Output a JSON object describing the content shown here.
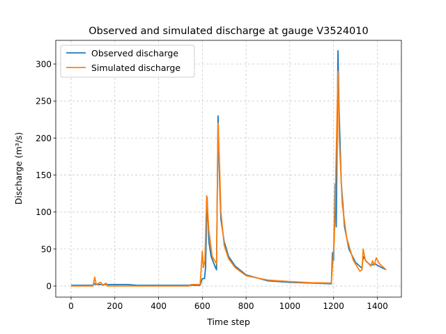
{
  "chart_data": {
    "type": "line",
    "title": "Observed and simulated discharge at gauge V3524010",
    "xlabel": "Time step",
    "ylabel": "Discharge (m³/s)",
    "xlim": [
      -70,
      1510
    ],
    "ylim": [
      -15,
      332
    ],
    "xticks": [
      0,
      200,
      400,
      600,
      800,
      1000,
      1200,
      1400
    ],
    "yticks": [
      0,
      50,
      100,
      150,
      200,
      250,
      300
    ],
    "grid": true,
    "legend_position": "top-left",
    "series": [
      {
        "name": "Observed discharge",
        "color": "#1f77b4",
        "x": [
          0,
          100,
          105,
          110,
          130,
          140,
          200,
          220,
          240,
          260,
          300,
          500,
          590,
          600,
          610,
          615,
          622,
          630,
          640,
          660,
          665,
          672,
          678,
          685,
          700,
          720,
          750,
          800,
          900,
          1000,
          1100,
          1190,
          1195,
          1200,
          1207,
          1212,
          1220,
          1225,
          1235,
          1250,
          1270,
          1300,
          1330,
          1335,
          1350,
          1370,
          1390,
          1400,
          1420,
          1440
        ],
        "y": [
          1,
          1,
          4,
          2,
          2,
          2,
          2,
          2,
          2,
          2,
          1,
          1,
          1,
          10,
          10,
          25,
          120,
          60,
          40,
          25,
          22,
          230,
          150,
          90,
          60,
          40,
          27,
          15,
          7,
          5,
          4,
          3,
          45,
          35,
          138,
          80,
          318,
          240,
          140,
          80,
          50,
          32,
          24,
          40,
          33,
          28,
          30,
          28,
          25,
          22
        ]
      },
      {
        "name": "Simulated discharge",
        "color": "#ff7f0e",
        "x": [
          0,
          100,
          108,
          115,
          135,
          145,
          160,
          165,
          540,
          548,
          590,
          600,
          605,
          612,
          620,
          630,
          645,
          665,
          672,
          678,
          685,
          700,
          720,
          750,
          800,
          900,
          1000,
          1100,
          1190,
          1197,
          1203,
          1208,
          1220,
          1226,
          1240,
          1260,
          1290,
          1320,
          1330,
          1335,
          1345,
          1370,
          1378,
          1385,
          1395,
          1410,
          1440
        ],
        "y": [
          0,
          0,
          12,
          2,
          5,
          1,
          4,
          0,
          0,
          2,
          2,
          47,
          25,
          35,
          122,
          75,
          40,
          30,
          220,
          170,
          100,
          55,
          37,
          25,
          14,
          8,
          6,
          4.5,
          4,
          35,
          60,
          120,
          290,
          200,
          110,
          65,
          35,
          20,
          22,
          50,
          35,
          27,
          34,
          28,
          38,
          30,
          22
        ]
      }
    ]
  }
}
